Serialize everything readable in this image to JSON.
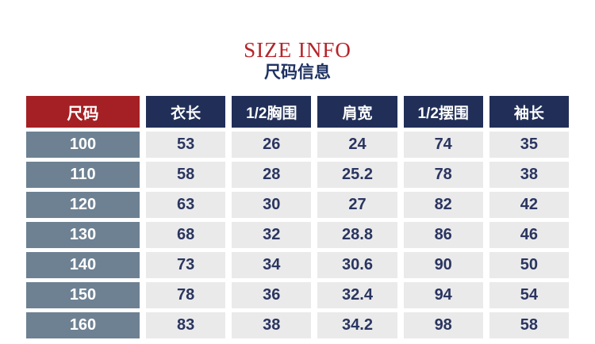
{
  "header": {
    "title_en": "SIZE INFO",
    "title_cn": "尺码信息"
  },
  "table": {
    "columns": [
      "尺码",
      "衣长",
      "1/2胸围",
      "肩宽",
      "1/2摆围",
      "袖长"
    ],
    "rows": [
      {
        "size": "100",
        "values": [
          "53",
          "26",
          "24",
          "74",
          "35"
        ]
      },
      {
        "size": "110",
        "values": [
          "58",
          "28",
          "25.2",
          "78",
          "38"
        ]
      },
      {
        "size": "120",
        "values": [
          "63",
          "30",
          "27",
          "82",
          "42"
        ]
      },
      {
        "size": "130",
        "values": [
          "68",
          "32",
          "28.8",
          "86",
          "46"
        ]
      },
      {
        "size": "140",
        "values": [
          "73",
          "34",
          "30.6",
          "90",
          "50"
        ]
      },
      {
        "size": "150",
        "values": [
          "78",
          "36",
          "32.4",
          "94",
          "54"
        ]
      },
      {
        "size": "160",
        "values": [
          "83",
          "38",
          "34.2",
          "98",
          "58"
        ]
      }
    ]
  },
  "chart_data": {
    "type": "table",
    "title": "SIZE INFO 尺码信息",
    "columns": [
      "尺码",
      "衣长",
      "1/2胸围",
      "肩宽",
      "1/2摆围",
      "袖长"
    ],
    "rows": [
      [
        "100",
        53,
        26,
        24,
        74,
        35
      ],
      [
        "110",
        58,
        28,
        25.2,
        78,
        38
      ],
      [
        "120",
        63,
        30,
        27,
        82,
        42
      ],
      [
        "130",
        68,
        32,
        28.8,
        86,
        46
      ],
      [
        "140",
        73,
        34,
        30.6,
        90,
        50
      ],
      [
        "150",
        78,
        36,
        32.4,
        94,
        54
      ],
      [
        "160",
        83,
        38,
        34.2,
        98,
        58
      ]
    ]
  },
  "colors": {
    "title_red": "#b5232a",
    "subtitle_navy": "#1e3162",
    "header_red": "#a52024",
    "header_navy": "#212f58",
    "size_column_slate": "#6d8193",
    "data_cell_gray": "#eaeaea",
    "data_text_navy": "#2a3560"
  }
}
